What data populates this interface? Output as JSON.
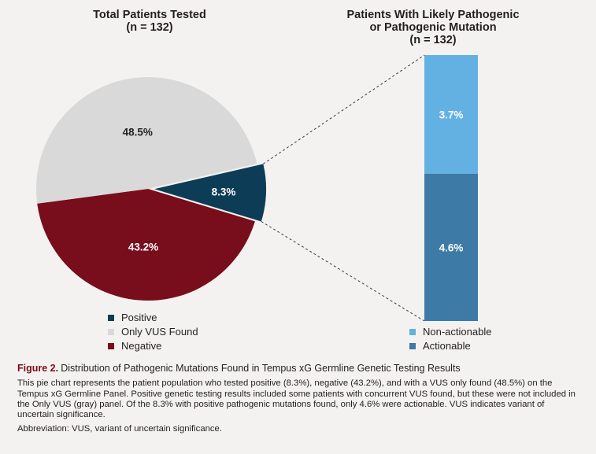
{
  "pie_title": {
    "line1": "Total Patients Tested",
    "line2": "(n = 132)"
  },
  "bar_title": {
    "line1": "Patients With Likely Pathogenic",
    "line2": "or Pathogenic Mutation",
    "line3": "(n = 132)"
  },
  "colors": {
    "positive": "#0d3d56",
    "vus": "#d9d9d9",
    "negative": "#780d1b",
    "non_actionable": "#63b1e2",
    "actionable": "#3d7aa6"
  },
  "chart_data": [
    {
      "type": "pie",
      "title": "Total Patients Tested (n = 132)",
      "slices": [
        {
          "label": "Positive",
          "value": 8.3,
          "display": "8.3%",
          "color": "#0d3d56"
        },
        {
          "label": "Negative",
          "value": 43.2,
          "display": "43.2%",
          "color": "#780d1b"
        },
        {
          "label": "Only VUS Found",
          "value": 48.5,
          "display": "48.5%",
          "color": "#d9d9d9"
        }
      ]
    },
    {
      "type": "bar",
      "stacked": true,
      "title": "Patients With Likely Pathogenic or Pathogenic Mutation (n = 132)",
      "total": 8.3,
      "segments": [
        {
          "label": "Actionable",
          "value": 4.6,
          "display": "4.6%",
          "color": "#3d7aa6"
        },
        {
          "label": "Non-actionable",
          "value": 3.7,
          "display": "3.7%",
          "color": "#63b1e2"
        }
      ]
    }
  ],
  "pie_legend": [
    {
      "label": "Positive",
      "color": "#0d3d56"
    },
    {
      "label": "Only VUS Found",
      "color": "#d9d9d9"
    },
    {
      "label": "Negative",
      "color": "#780d1b"
    }
  ],
  "bar_legend": [
    {
      "label": "Non-actionable",
      "color": "#63b1e2"
    },
    {
      "label": "Actionable",
      "color": "#3d7aa6"
    }
  ],
  "caption": {
    "figure_label": "Figure 2.",
    "figure_title": "Distribution of Pathogenic Mutations Found in Tempus xG Germline Genetic Testing Results",
    "body": "This pie chart represents the patient population who tested positive (8.3%), negative (43.2%), and with a VUS only found (48.5%) on the Tempus xG Germline Panel. Positive genetic testing results included some patients with concurrent VUS found, but these were not included in the Only VUS (gray) panel. Of the 8.3% with positive pathogenic mutations found, only 4.6% were actionable. VUS indicates variant of uncertain significance.",
    "abbreviation": "Abbreviation: VUS, variant of uncertain significance."
  }
}
